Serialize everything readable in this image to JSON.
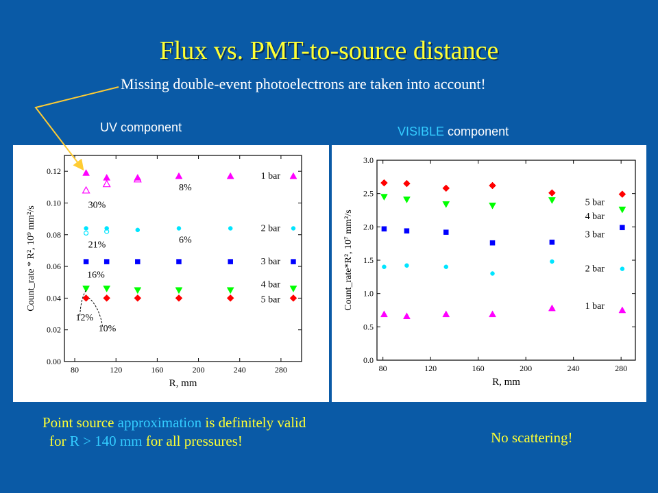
{
  "title": "Flux vs. PMT-to-source distance",
  "subtitle": "Missing double-event photoelectrons are taken into account!",
  "colors": {
    "background": "#0a5aa6",
    "title": "#ffff33",
    "highlight": "#33ccff",
    "arrow": "#ffcc33"
  },
  "left_panel": {
    "label": "UV component"
  },
  "right_panel": {
    "label_part1": "VISIBLE",
    "label_part2": " component"
  },
  "note_left": {
    "line1_a": "Point source ",
    "line1_b": "approximation",
    "line1_c": " is definitely valid",
    "line2_a": "for ",
    "line2_b": "R > 140 mm",
    "line2_c": " for all pressures!"
  },
  "note_right": "No scattering!",
  "chart_data": [
    {
      "type": "scatter",
      "xlabel": "R, mm",
      "ylabel": "Count_rate * R², 10⁹ mm²/s",
      "xlim": [
        70,
        300
      ],
      "ylim": [
        0,
        0.13
      ],
      "xticks": [
        80,
        120,
        160,
        200,
        240,
        280
      ],
      "yticks": [
        0.0,
        0.02,
        0.04,
        0.06,
        0.08,
        0.1,
        0.12
      ],
      "x_tick_labels": [
        "80",
        "120",
        "160",
        "200",
        "240",
        "280"
      ],
      "y_tick_labels": [
        "0.00",
        "0.02",
        "0.04",
        "0.06",
        "0.08",
        "0.10",
        "0.12"
      ],
      "series": [
        {
          "name": "1 bar",
          "marker": "triangle-up",
          "color": "#ff00ff",
          "x": [
            91,
            111,
            141,
            181,
            231,
            292
          ],
          "y": [
            0.119,
            0.116,
            0.116,
            0.117,
            0.117,
            0.117
          ]
        },
        {
          "name": "2 bar",
          "marker": "circle",
          "color": "#00e5ff",
          "x": [
            91,
            111,
            141,
            181,
            231,
            292
          ],
          "y": [
            0.084,
            0.084,
            0.083,
            0.084,
            0.084,
            0.084
          ]
        },
        {
          "name": "3 bar",
          "marker": "square",
          "color": "#0000ff",
          "x": [
            91,
            111,
            141,
            181,
            231,
            292
          ],
          "y": [
            0.063,
            0.063,
            0.063,
            0.063,
            0.063,
            0.063
          ]
        },
        {
          "name": "4 bar",
          "marker": "triangle-down",
          "color": "#00ff00",
          "x": [
            91,
            111,
            141,
            181,
            231,
            292
          ],
          "y": [
            0.046,
            0.046,
            0.045,
            0.045,
            0.045,
            0.046
          ]
        },
        {
          "name": "5 bar",
          "marker": "diamond",
          "color": "#ff0000",
          "x": [
            91,
            111,
            141,
            181,
            231,
            292
          ],
          "y": [
            0.04,
            0.04,
            0.04,
            0.04,
            0.04,
            0.04
          ]
        }
      ],
      "open_markers": [
        {
          "marker": "triangle-up",
          "color": "#ff00ff",
          "x": [
            91,
            111,
            141
          ],
          "y": [
            0.108,
            0.112,
            0.115
          ]
        },
        {
          "marker": "circle",
          "color": "#00e5ff",
          "x": [
            91,
            111
          ],
          "y": [
            0.081,
            0.082
          ]
        }
      ],
      "annotations": [
        {
          "text": "30%",
          "x": 93,
          "y": 0.097
        },
        {
          "text": "8%",
          "x": 181,
          "y": 0.108
        },
        {
          "text": "21%",
          "x": 93,
          "y": 0.072
        },
        {
          "text": "6%",
          "x": 181,
          "y": 0.075
        },
        {
          "text": "16%",
          "x": 92,
          "y": 0.053
        },
        {
          "text": "12%",
          "x": 81,
          "y": 0.026
        },
        {
          "text": "10%",
          "x": 103,
          "y": 0.019
        }
      ]
    },
    {
      "type": "scatter",
      "xlabel": "R, mm",
      "ylabel": "Count_rate*R², 10⁷ mm²/s",
      "xlim": [
        75,
        292
      ],
      "ylim": [
        0,
        3.0
      ],
      "xticks": [
        80,
        120,
        160,
        200,
        240,
        280
      ],
      "yticks": [
        0.0,
        0.5,
        1.0,
        1.5,
        2.0,
        2.5,
        3.0
      ],
      "x_tick_labels": [
        "80",
        "120",
        "160",
        "200",
        "240",
        "280"
      ],
      "y_tick_labels": [
        "0.0",
        "0.5",
        "1.0",
        "1.5",
        "2.0",
        "2.5",
        "3.0"
      ],
      "series": [
        {
          "name": "5 bar",
          "marker": "diamond",
          "color": "#ff0000",
          "x": [
            81,
            100,
            133,
            172,
            222,
            281
          ],
          "y": [
            2.66,
            2.65,
            2.58,
            2.62,
            2.51,
            2.49
          ]
        },
        {
          "name": "4 bar",
          "marker": "triangle-down",
          "color": "#00ff00",
          "x": [
            81,
            100,
            133,
            172,
            222,
            281
          ],
          "y": [
            2.45,
            2.41,
            2.34,
            2.32,
            2.4,
            2.26
          ]
        },
        {
          "name": "3 bar",
          "marker": "square",
          "color": "#0000ff",
          "x": [
            81,
            100,
            133,
            172,
            222,
            281
          ],
          "y": [
            1.97,
            1.94,
            1.92,
            1.76,
            1.77,
            1.99
          ]
        },
        {
          "name": "2 bar",
          "marker": "circle",
          "color": "#00e5ff",
          "x": [
            81,
            100,
            133,
            172,
            222,
            281
          ],
          "y": [
            1.4,
            1.42,
            1.4,
            1.3,
            1.48,
            1.37
          ]
        },
        {
          "name": "1 bar",
          "marker": "triangle-up",
          "color": "#ff00ff",
          "x": [
            81,
            100,
            133,
            172,
            222,
            281
          ],
          "y": [
            0.69,
            0.66,
            0.69,
            0.69,
            0.78,
            0.75
          ]
        }
      ]
    }
  ]
}
